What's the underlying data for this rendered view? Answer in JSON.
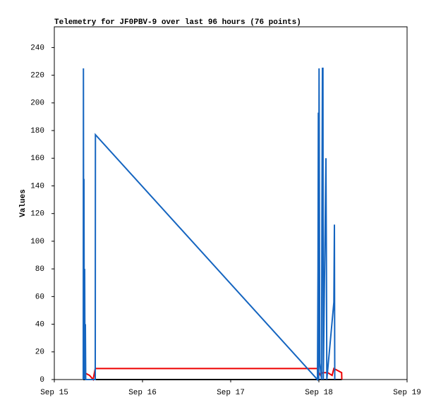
{
  "chart_data": {
    "type": "line",
    "title": "Telemetry for JF0PBV-9 over last 96 hours (76 points)",
    "y_label": "Values",
    "xlim": [
      0,
      4
    ],
    "ylim": [
      0,
      255
    ],
    "xticks": [
      {
        "value": 0,
        "label": "Sep 15"
      },
      {
        "value": 1,
        "label": "Sep 16"
      },
      {
        "value": 2,
        "label": "Sep 17"
      },
      {
        "value": 3,
        "label": "Sep 18"
      },
      {
        "value": 4,
        "label": "Sep 19"
      }
    ],
    "yticks": [
      0,
      20,
      40,
      60,
      80,
      100,
      120,
      140,
      160,
      180,
      200,
      220,
      240
    ],
    "grid": false,
    "series": [
      {
        "color": "#000000",
        "x": [
          0.328,
          3.26
        ],
        "values": [
          0,
          0
        ]
      },
      {
        "color": "#ee0000",
        "x": [
          0.328,
          0.34,
          0.4,
          0.44,
          0.464,
          2.984,
          2.99,
          3.0,
          3.02,
          3.04,
          3.1,
          3.15,
          3.17,
          3.258,
          3.26
        ],
        "values": [
          6,
          5,
          3,
          0,
          8,
          8,
          0,
          5,
          3,
          5,
          5,
          3,
          8,
          5,
          0
        ]
      },
      {
        "color": "#1565c0",
        "x": [
          0.328,
          0.33,
          0.334,
          0.336,
          0.34,
          0.344,
          0.348,
          0.352,
          0.356,
          0.464,
          0.466,
          2.984,
          2.99,
          2.994,
          2.998,
          3.002,
          3.006,
          3.01,
          3.03,
          3.034,
          3.04,
          3.046,
          3.05,
          3.08,
          3.086,
          3.09,
          3.17,
          3.176,
          3.18
        ],
        "values": [
          0,
          225,
          0,
          145,
          0,
          80,
          0,
          40,
          0,
          0,
          177,
          0,
          80,
          193,
          0,
          225,
          120,
          12,
          0,
          113,
          225,
          225,
          0,
          160,
          73,
          0,
          56,
          112,
          0
        ]
      }
    ]
  }
}
